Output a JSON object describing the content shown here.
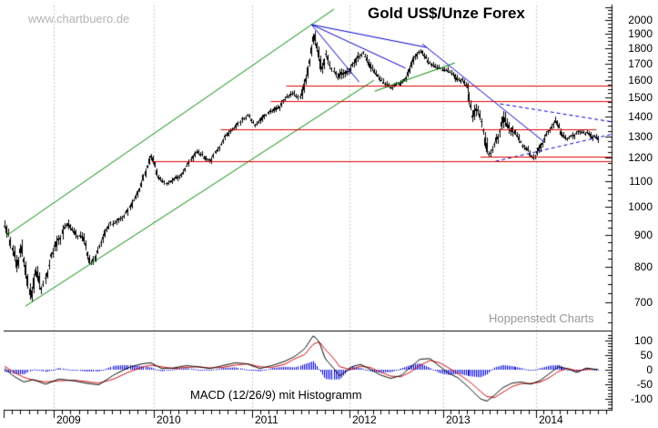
{
  "header": {
    "watermark": "www.chartbuero.de",
    "branding": "Hoppenstedt Charts"
  },
  "chart_data": {
    "type": "candlestick",
    "title": "Gold US$/Unze Forex",
    "macd_label": "MACD (12/26/9) mit Histogramm",
    "x_axis": {
      "years": [
        "2009",
        "2010",
        "2011",
        "2012",
        "2013",
        "2014"
      ],
      "minor_ticks": "monthly"
    },
    "y_axis_price": {
      "scale": "log",
      "labels": [
        2000,
        1900,
        1800,
        1700,
        1600,
        1500,
        1400,
        1300,
        1200,
        1100,
        1000,
        900,
        800,
        700
      ],
      "minor_step": 25
    },
    "y_axis_macd": {
      "labels": [
        100,
        50,
        0,
        -50,
        -100
      ],
      "minor_step": 10
    },
    "series": {
      "price_weekly_anchors": [
        [
          2008.51,
          940
        ],
        [
          2008.55,
          905
        ],
        [
          2008.6,
          850
        ],
        [
          2008.64,
          795
        ],
        [
          2008.68,
          870
        ],
        [
          2008.73,
          790
        ],
        [
          2008.78,
          705
        ],
        [
          2008.83,
          800
        ],
        [
          2008.88,
          730
        ],
        [
          2008.93,
          775
        ],
        [
          2008.99,
          845
        ],
        [
          2009.06,
          885
        ],
        [
          2009.14,
          945
        ],
        [
          2009.22,
          905
        ],
        [
          2009.3,
          890
        ],
        [
          2009.38,
          800
        ],
        [
          2009.45,
          855
        ],
        [
          2009.55,
          930
        ],
        [
          2009.62,
          945
        ],
        [
          2009.7,
          960
        ],
        [
          2009.78,
          1005
        ],
        [
          2009.86,
          1060
        ],
        [
          2009.93,
          1150
        ],
        [
          2009.98,
          1212
        ],
        [
          2010.05,
          1120
        ],
        [
          2010.13,
          1085
        ],
        [
          2010.22,
          1110
        ],
        [
          2010.3,
          1130
        ],
        [
          2010.38,
          1190
        ],
        [
          2010.45,
          1230
        ],
        [
          2010.52,
          1200
        ],
        [
          2010.58,
          1185
        ],
        [
          2010.66,
          1240
        ],
        [
          2010.74,
          1300
        ],
        [
          2010.82,
          1340
        ],
        [
          2010.9,
          1380
        ],
        [
          2010.97,
          1405
        ],
        [
          2011.04,
          1350
        ],
        [
          2011.12,
          1395
        ],
        [
          2011.2,
          1430
        ],
        [
          2011.28,
          1445
        ],
        [
          2011.36,
          1505
        ],
        [
          2011.44,
          1520
        ],
        [
          2011.5,
          1495
        ],
        [
          2011.55,
          1590
        ],
        [
          2011.6,
          1740
        ],
        [
          2011.635,
          1905
        ],
        [
          2011.675,
          1820
        ],
        [
          2011.72,
          1650
        ],
        [
          2011.765,
          1760
        ],
        [
          2011.81,
          1690
        ],
        [
          2011.87,
          1625
        ],
        [
          2012,
          1655
        ],
        [
          2012.07,
          1715
        ],
        [
          2012.15,
          1775
        ],
        [
          2012.23,
          1680
        ],
        [
          2012.31,
          1620
        ],
        [
          2012.38,
          1575
        ],
        [
          2012.46,
          1560
        ],
        [
          2012.54,
          1585
        ],
        [
          2012.62,
          1615
        ],
        [
          2012.7,
          1740
        ],
        [
          2012.77,
          1780
        ],
        [
          2012.85,
          1715
        ],
        [
          2012.93,
          1680
        ],
        [
          2013,
          1665
        ],
        [
          2013.08,
          1655
        ],
        [
          2013.15,
          1605
        ],
        [
          2013.22,
          1595
        ],
        [
          2013.27,
          1560
        ],
        [
          2013.29,
          1500
        ],
        [
          2013.32,
          1405
        ],
        [
          2013.38,
          1440
        ],
        [
          2013.43,
          1350
        ],
        [
          2013.49,
          1210
        ],
        [
          2013.55,
          1255
        ],
        [
          2013.61,
          1320
        ],
        [
          2013.66,
          1395
        ],
        [
          2013.72,
          1340
        ],
        [
          2013.79,
          1315
        ],
        [
          2013.86,
          1260
        ],
        [
          2013.93,
          1225
        ],
        [
          2013.99,
          1195
        ],
        [
          2014.06,
          1255
        ],
        [
          2014.13,
          1320
        ],
        [
          2014.22,
          1380
        ],
        [
          2014.28,
          1305
        ],
        [
          2014.34,
          1285
        ],
        [
          2014.41,
          1300
        ],
        [
          2014.48,
          1325
        ],
        [
          2014.55,
          1315
        ],
        [
          2014.61,
          1300
        ],
        [
          2014.67,
          1285
        ]
      ],
      "macd_anchors": [
        [
          2008.51,
          5,
          12
        ],
        [
          2008.6,
          -22,
          -8
        ],
        [
          2008.7,
          -42,
          -26
        ],
        [
          2008.8,
          -34,
          -36
        ],
        [
          2008.92,
          -50,
          -42
        ],
        [
          2009.05,
          -32,
          -38
        ],
        [
          2009.2,
          -38,
          -36
        ],
        [
          2009.32,
          -46,
          -40
        ],
        [
          2009.45,
          -52,
          -46
        ],
        [
          2009.6,
          -18,
          -32
        ],
        [
          2009.75,
          8,
          -8
        ],
        [
          2009.88,
          20,
          8
        ],
        [
          2009.97,
          24,
          16
        ],
        [
          2010.08,
          4,
          10
        ],
        [
          2010.2,
          6,
          4
        ],
        [
          2010.33,
          14,
          8
        ],
        [
          2010.45,
          10,
          10
        ],
        [
          2010.57,
          4,
          6
        ],
        [
          2010.7,
          14,
          8
        ],
        [
          2010.83,
          24,
          16
        ],
        [
          2010.95,
          20,
          20
        ],
        [
          2011.08,
          4,
          10
        ],
        [
          2011.2,
          14,
          8
        ],
        [
          2011.33,
          28,
          18
        ],
        [
          2011.44,
          46,
          38
        ],
        [
          2011.54,
          72,
          52
        ],
        [
          2011.63,
          118,
          88
        ],
        [
          2011.69,
          95,
          96
        ],
        [
          2011.75,
          38,
          70
        ],
        [
          2011.83,
          8,
          42
        ],
        [
          2011.9,
          -22,
          10
        ],
        [
          2012.02,
          10,
          0
        ],
        [
          2012.12,
          18,
          12
        ],
        [
          2012.22,
          2,
          8
        ],
        [
          2012.33,
          -18,
          -8
        ],
        [
          2012.44,
          -30,
          -22
        ],
        [
          2012.55,
          -20,
          -24
        ],
        [
          2012.65,
          8,
          -8
        ],
        [
          2012.75,
          36,
          14
        ],
        [
          2012.86,
          38,
          32
        ],
        [
          2012.96,
          12,
          24
        ],
        [
          2013.06,
          -12,
          6
        ],
        [
          2013.16,
          -28,
          -14
        ],
        [
          2013.28,
          -62,
          -40
        ],
        [
          2013.4,
          -100,
          -74
        ],
        [
          2013.47,
          -108,
          -92
        ],
        [
          2013.55,
          -88,
          -96
        ],
        [
          2013.64,
          -62,
          -78
        ],
        [
          2013.74,
          -46,
          -58
        ],
        [
          2013.84,
          -42,
          -48
        ],
        [
          2013.94,
          -50,
          -47
        ],
        [
          2014.04,
          -38,
          -43
        ],
        [
          2014.14,
          -14,
          -28
        ],
        [
          2014.24,
          10,
          -6
        ],
        [
          2014.34,
          4,
          4
        ],
        [
          2014.44,
          -10,
          -3
        ],
        [
          2014.54,
          6,
          0
        ],
        [
          2014.62,
          2,
          2
        ],
        [
          2014.67,
          1,
          1
        ]
      ]
    },
    "overlays": {
      "red_levels": [
        {
          "value": 1569,
          "t1": 2011.35,
          "t2": 2014.81
        },
        {
          "value": 1480,
          "t1": 2011.19,
          "t2": 2014.81
        },
        {
          "value": 1335,
          "t1": 2010.68,
          "t2": 2014.65
        },
        {
          "value": 1205,
          "t1": 2013.4,
          "t2": 2014.81
        },
        {
          "value": 1185,
          "t1": 2009.98,
          "t2": 2014.81
        }
      ],
      "green_trendlines": [
        {
          "t1": 2008.536,
          "v1": 900,
          "t2": 2011.841,
          "v2": 2085
        },
        {
          "t1": 2008.718,
          "v1": 691,
          "t2": 2012.262,
          "v2": 1601
        },
        {
          "t1": 2012.271,
          "v1": 1537,
          "t2": 2013.126,
          "v2": 1707
        }
      ],
      "blue_fan_lines": [
        {
          "t1": 2011.611,
          "v1": 1968,
          "t2": 2012.103,
          "v2": 1590
        },
        {
          "t1": 2011.611,
          "v1": 1968,
          "t2": 2012.598,
          "v2": 1674
        },
        {
          "t1": 2011.611,
          "v1": 1968,
          "t2": 2012.825,
          "v2": 1808
        }
      ],
      "blue_downtrend": {
        "t1": 2012.777,
        "v1": 1832,
        "t2": 2014.088,
        "v2": 1272
      },
      "blue_dashed_wedge": [
        {
          "t1": 2013.612,
          "v1": 1466,
          "t2": 2014.833,
          "v2": 1370
        },
        {
          "t1": 2013.563,
          "v1": 1184,
          "t2": 2014.833,
          "v2": 1311
        }
      ]
    },
    "colors": {
      "price": "#000000",
      "trend_green": "#008800",
      "level_red": "#e00000",
      "blue": "#0000cc",
      "macd_line": "#000000",
      "macd_signal": "#cc0000",
      "histogram": "#0000dd",
      "grid": "#c6c6c6",
      "watermark": "#b4b4b4",
      "branding": "#999999"
    }
  }
}
